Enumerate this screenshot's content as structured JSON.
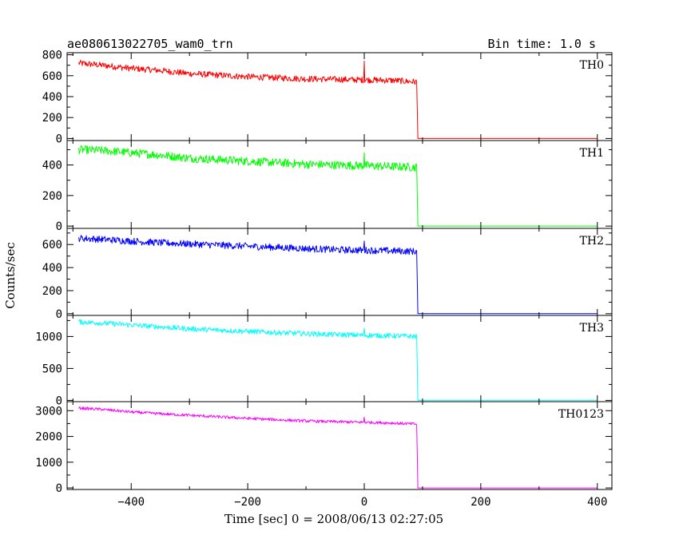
{
  "chart_data": {
    "type": "line",
    "title": "ae080613022705_wam0_trn",
    "subtitle": "Bin time: 1.0 s",
    "xlabel": "Time [sec] 0 = 2008/06/13 02:27:05",
    "ylabel": "Counts/sec",
    "xlim": [
      -510,
      425
    ],
    "x_ticks": [
      -400,
      -200,
      0,
      200,
      400
    ],
    "x_tick_labels": [
      "−400",
      "−200",
      "0",
      "200",
      "400"
    ],
    "panels": [
      {
        "name": "TH0",
        "color": "#ff0000",
        "ylim": [
          -20,
          820
        ],
        "y_ticks": [
          0,
          200,
          400,
          600,
          800
        ],
        "y_tick_labels": [
          "0",
          "200",
          "400",
          "600",
          "800"
        ],
        "x": [
          -490,
          -450,
          -400,
          -350,
          -300,
          -250,
          -200,
          -150,
          -100,
          -50,
          0,
          50,
          90,
          92,
          100,
          200,
          300,
          400
        ],
        "y": [
          720,
          700,
          670,
          650,
          620,
          605,
          590,
          580,
          570,
          565,
          560,
          555,
          540,
          0,
          0,
          0,
          0,
          0
        ],
        "noise": 30,
        "spike": {
          "x": 0,
          "y": 740
        }
      },
      {
        "name": "TH1",
        "color": "#00ff00",
        "ylim": [
          -15,
          560
        ],
        "y_ticks": [
          0,
          200,
          400
        ],
        "y_tick_labels": [
          "0",
          "200",
          "400"
        ],
        "x": [
          -490,
          -450,
          -400,
          -350,
          -300,
          -250,
          -200,
          -150,
          -100,
          -50,
          0,
          50,
          90,
          92,
          100,
          200,
          300,
          400
        ],
        "y": [
          500,
          495,
          480,
          465,
          445,
          435,
          425,
          415,
          405,
          400,
          395,
          390,
          385,
          0,
          0,
          0,
          0,
          0
        ],
        "noise": 28,
        "spike": {
          "x": 0,
          "y": 480
        }
      },
      {
        "name": "TH2",
        "color": "#0000ff",
        "ylim": [
          -15,
          740
        ],
        "y_ticks": [
          0,
          200,
          400,
          600
        ],
        "y_tick_labels": [
          "0",
          "200",
          "400",
          "600"
        ],
        "x": [
          -490,
          -450,
          -400,
          -350,
          -300,
          -250,
          -200,
          -150,
          -100,
          -50,
          0,
          50,
          90,
          92,
          100,
          200,
          300,
          400
        ],
        "y": [
          655,
          645,
          630,
          615,
          605,
          595,
          585,
          575,
          565,
          555,
          550,
          545,
          540,
          0,
          0,
          0,
          0,
          0
        ],
        "noise": 30,
        "spike": {
          "x": 0,
          "y": 630
        }
      },
      {
        "name": "TH3",
        "color": "#00ffff",
        "ylim": [
          -20,
          1330
        ],
        "y_ticks": [
          0,
          500,
          1000
        ],
        "y_tick_labels": [
          "0",
          "500",
          "1000"
        ],
        "x": [
          -490,
          -450,
          -400,
          -350,
          -300,
          -250,
          -200,
          -150,
          -100,
          -50,
          0,
          50,
          90,
          92,
          100,
          200,
          300,
          400
        ],
        "y": [
          1230,
          1210,
          1180,
          1150,
          1120,
          1100,
          1080,
          1060,
          1045,
          1030,
          1020,
          1010,
          1000,
          0,
          0,
          0,
          0,
          0
        ],
        "noise": 40,
        "spike": {
          "x": 0,
          "y": 1130
        }
      },
      {
        "name": "TH0123",
        "color": "#ff00ff",
        "ylim": [
          -60,
          3350
        ],
        "y_ticks": [
          0,
          1000,
          2000,
          3000
        ],
        "y_tick_labels": [
          "0",
          "1000",
          "2000",
          "3000"
        ],
        "x": [
          -490,
          -450,
          -400,
          -350,
          -300,
          -250,
          -200,
          -150,
          -100,
          -50,
          0,
          50,
          90,
          92,
          100,
          200,
          300,
          400
        ],
        "y": [
          3100,
          3050,
          2950,
          2880,
          2820,
          2760,
          2700,
          2650,
          2600,
          2570,
          2550,
          2520,
          2480,
          0,
          0,
          0,
          0,
          0
        ],
        "noise": 55,
        "spike": {
          "x": 0,
          "y": 2750
        }
      }
    ],
    "grid": false,
    "legend": "none"
  }
}
